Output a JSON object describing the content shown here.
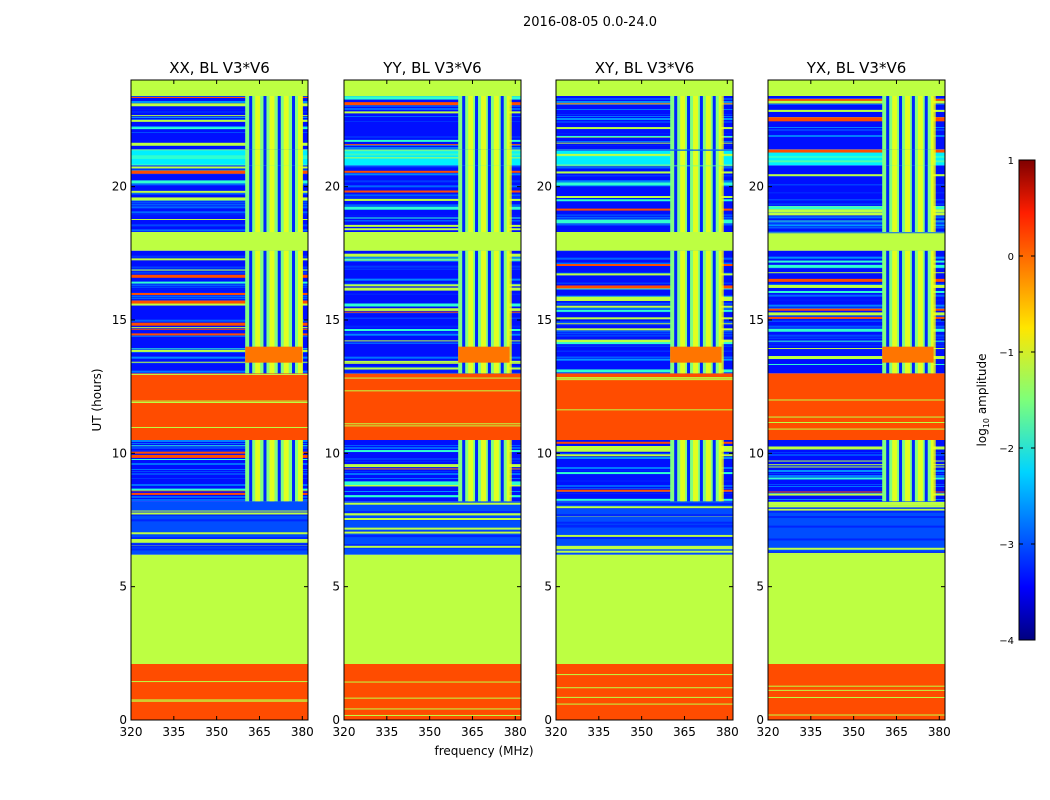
{
  "figure_title": "2016-08-05 0.0-24.0",
  "chart_data": {
    "type": "heatmap",
    "title": "2016-08-05 0.0-24.0",
    "xlabel": "frequency (MHz)",
    "ylabel": "UT (hours)",
    "xlim": [
      320,
      382
    ],
    "ylim": [
      0,
      24
    ],
    "xticks": [
      320,
      335,
      350,
      365,
      380
    ],
    "yticks": [
      0,
      5,
      10,
      15,
      20
    ],
    "panels": [
      {
        "title": "XX, BL V3*V6",
        "polarization": "XX",
        "band_x": [
          360,
          380
        ]
      },
      {
        "title": "YY, BL V3*V6",
        "polarization": "YY",
        "band_x": [
          360,
          378
        ]
      },
      {
        "title": "XY, BL V3*V6",
        "polarization": "XY",
        "band_x": [
          360,
          378
        ]
      },
      {
        "title": "YX, BL V3*V6",
        "polarization": "YX",
        "band_x": [
          360,
          378
        ]
      }
    ],
    "time_segments": [
      {
        "from": 0.0,
        "to": 2.1,
        "state": "flagged",
        "log10_amplitude": 0
      },
      {
        "from": 2.1,
        "to": 6.2,
        "state": "no data",
        "log10_amplitude": -1.2
      },
      {
        "from": 6.2,
        "to": 8.2,
        "state": "mixed",
        "log10_amplitude": -3
      },
      {
        "from": 8.2,
        "to": 10.5,
        "state": "observed",
        "log10_amplitude": -3.3
      },
      {
        "from": 10.5,
        "to": 13.0,
        "state": "flagged",
        "log10_amplitude": 0
      },
      {
        "from": 13.0,
        "to": 17.6,
        "state": "observed",
        "log10_amplitude": -3.3
      },
      {
        "from": 17.6,
        "to": 18.3,
        "state": "no data",
        "log10_amplitude": -1.2
      },
      {
        "from": 18.3,
        "to": 20.8,
        "state": "observed",
        "log10_amplitude": -3.3
      },
      {
        "from": 20.8,
        "to": 21.4,
        "state": "elevated",
        "log10_amplitude": -2.2
      },
      {
        "from": 21.4,
        "to": 23.4,
        "state": "observed",
        "log10_amplitude": -3.3
      },
      {
        "from": 23.4,
        "to": 24.0,
        "state": "no data",
        "log10_amplitude": -1.2
      }
    ],
    "colorbar": {
      "label": "log10 amplitude",
      "label_base": "log",
      "label_sub": "10",
      "label_rest": " amplitude",
      "range": [
        -4,
        1
      ],
      "ticks": [
        1,
        0,
        -1,
        -2,
        -3,
        -4
      ],
      "tick_labels": [
        "1",
        "0",
        "−1",
        "−2",
        "−3",
        "−4"
      ],
      "colormap": "jet"
    }
  }
}
